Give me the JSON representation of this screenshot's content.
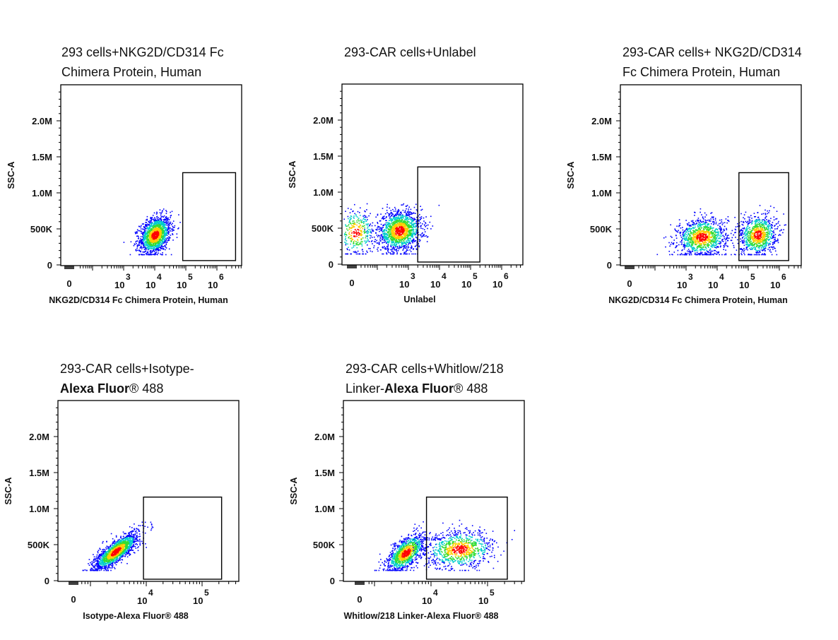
{
  "chart_data": [
    {
      "type": "scatter",
      "title_lines": [
        [
          {
            "t": "293  cells+NKG2D/CD314  Fc"
          }
        ],
        [
          {
            "t": "Chimera Protein, Human"
          }
        ]
      ],
      "xlabel": "NKG2D/CD314 Fc Chimera Protein, Human",
      "ylabel": "SSC-A",
      "xscale": "biexponential",
      "yticks": [
        {
          "v": 0,
          "label": "0"
        },
        {
          "v": 500000,
          "label": "500K"
        },
        {
          "v": 1000000,
          "label": "1.0M"
        },
        {
          "v": 1500000,
          "label": "1.5M"
        },
        {
          "v": 2000000,
          "label": "2.0M"
        }
      ],
      "xticks": [
        {
          "decade": null,
          "label": "0"
        },
        {
          "decade": 3,
          "base": "10",
          "exp": "3"
        },
        {
          "decade": 4,
          "base": "10",
          "exp": "4"
        },
        {
          "decade": 5,
          "base": "10",
          "exp": "5"
        },
        {
          "decade": 6,
          "base": "10",
          "exp": "6"
        }
      ],
      "gate": {
        "xlog": [
          4.9,
          6.6
        ],
        "y": [
          60000,
          1280000
        ]
      },
      "populations": [
        {
          "xlog": 4.0,
          "y": 420000,
          "sx": 0.25,
          "sy": 130000,
          "rho": 0.3,
          "n": 1500
        }
      ]
    },
    {
      "type": "scatter",
      "title_lines": [
        [
          {
            "t": "293-CAR cells+Unlabel"
          }
        ]
      ],
      "xlabel": "Unlabel",
      "ylabel": "SSC-A",
      "xscale": "biexponential",
      "yticks": [
        {
          "v": 0,
          "label": "0"
        },
        {
          "v": 500000,
          "label": "500K"
        },
        {
          "v": 1000000,
          "label": "1.0M"
        },
        {
          "v": 1500000,
          "label": "1.5M"
        },
        {
          "v": 2000000,
          "label": "2.0M"
        }
      ],
      "xticks": [
        {
          "decade": null,
          "label": "0"
        },
        {
          "decade": 3,
          "base": "10",
          "exp": "3"
        },
        {
          "decade": 4,
          "base": "10",
          "exp": "4"
        },
        {
          "decade": 5,
          "base": "10",
          "exp": "5"
        },
        {
          "decade": 6,
          "base": "10",
          "exp": "6"
        }
      ],
      "gate": {
        "xlog": [
          3.3,
          5.3
        ],
        "y": [
          30000,
          1350000
        ]
      },
      "populations": [
        {
          "xlog": 2.7,
          "y": 470000,
          "sx": 0.35,
          "sy": 140000,
          "rho": 0.1,
          "n": 1500
        },
        {
          "xlog": 1.3,
          "y": 450000,
          "sx": 0.3,
          "sy": 160000,
          "rho": 0,
          "n": 350
        }
      ]
    },
    {
      "type": "scatter",
      "title_lines": [
        [
          {
            "t": "293-CAR cells+ NKG2D/CD314"
          }
        ],
        [
          {
            "t": "Fc Chimera Protein, Human"
          }
        ]
      ],
      "xlabel": "NKG2D/CD314 Fc Chimera Protein, Human",
      "ylabel": "SSC-A",
      "xscale": "biexponential",
      "yticks": [
        {
          "v": 0,
          "label": "0"
        },
        {
          "v": 500000,
          "label": "500K"
        },
        {
          "v": 1000000,
          "label": "1.0M"
        },
        {
          "v": 1500000,
          "label": "1.5M"
        },
        {
          "v": 2000000,
          "label": "2.0M"
        }
      ],
      "xticks": [
        {
          "decade": null,
          "label": "0"
        },
        {
          "decade": 3,
          "base": "10",
          "exp": "3"
        },
        {
          "decade": 4,
          "base": "10",
          "exp": "4"
        },
        {
          "decade": 5,
          "base": "10",
          "exp": "5"
        },
        {
          "decade": 6,
          "base": "10",
          "exp": "6"
        }
      ],
      "gate": {
        "xlog": [
          4.7,
          6.3
        ],
        "y": [
          60000,
          1280000
        ]
      },
      "populations": [
        {
          "xlog": 3.5,
          "y": 390000,
          "sx": 0.4,
          "sy": 130000,
          "rho": 0.1,
          "n": 1100
        },
        {
          "xlog": 5.3,
          "y": 420000,
          "sx": 0.3,
          "sy": 140000,
          "rho": 0.1,
          "n": 900
        }
      ]
    },
    {
      "type": "scatter",
      "title_lines": [
        [
          {
            "t": "293-CAR cells+Isotype-"
          }
        ],
        [
          {
            "t": "Alexa Fluor",
            "b": true
          },
          {
            "t": "® 488"
          }
        ]
      ],
      "xlabel": "Isotype-Alexa Fluor® 488",
      "ylabel": "SSC-A",
      "xscale": "biexponential",
      "yticks": [
        {
          "v": 0,
          "label": "0"
        },
        {
          "v": 500000,
          "label": "500K"
        },
        {
          "v": 1000000,
          "label": "1.0M"
        },
        {
          "v": 1500000,
          "label": "1.5M"
        },
        {
          "v": 2000000,
          "label": "2.0M"
        }
      ],
      "xticks": [
        {
          "decade": null,
          "label": "0"
        },
        {
          "decade": 4,
          "base": "10",
          "exp": "4"
        },
        {
          "decade": 5,
          "base": "10",
          "exp": "5"
        }
      ],
      "gate": {
        "xlog": [
          3.95,
          5.35
        ],
        "y": [
          20000,
          1160000
        ]
      },
      "populations": [
        {
          "xlog": 3.45,
          "y": 410000,
          "sx": 0.2,
          "sy": 130000,
          "rho": 0.8,
          "n": 1600
        }
      ]
    },
    {
      "type": "scatter",
      "title_lines": [
        [
          {
            "t": "293-CAR cells+Whitlow/218"
          }
        ],
        [
          {
            "t": "Linker-"
          },
          {
            "t": "Alexa Fluor",
            "b": true
          },
          {
            "t": "® 488"
          }
        ]
      ],
      "xlabel": "Whitlow/218 Linker-Alexa Fluor® 488",
      "ylabel": "SSC-A",
      "xscale": "biexponential",
      "yticks": [
        {
          "v": 0,
          "label": "0"
        },
        {
          "v": 500000,
          "label": "500K"
        },
        {
          "v": 1000000,
          "label": "1.0M"
        },
        {
          "v": 1500000,
          "label": "1.5M"
        },
        {
          "v": 2000000,
          "label": "2.0M"
        }
      ],
      "xticks": [
        {
          "decade": null,
          "label": "0"
        },
        {
          "decade": 4,
          "base": "10",
          "exp": "4"
        },
        {
          "decade": 5,
          "base": "10",
          "exp": "5"
        }
      ],
      "gate": {
        "xlog": [
          3.92,
          5.35
        ],
        "y": [
          20000,
          1160000
        ]
      },
      "populations": [
        {
          "xlog": 3.55,
          "y": 390000,
          "sx": 0.17,
          "sy": 130000,
          "rho": 0.6,
          "n": 1100
        },
        {
          "xlog": 4.5,
          "y": 440000,
          "sx": 0.3,
          "sy": 130000,
          "rho": 0.1,
          "n": 900
        }
      ]
    }
  ]
}
